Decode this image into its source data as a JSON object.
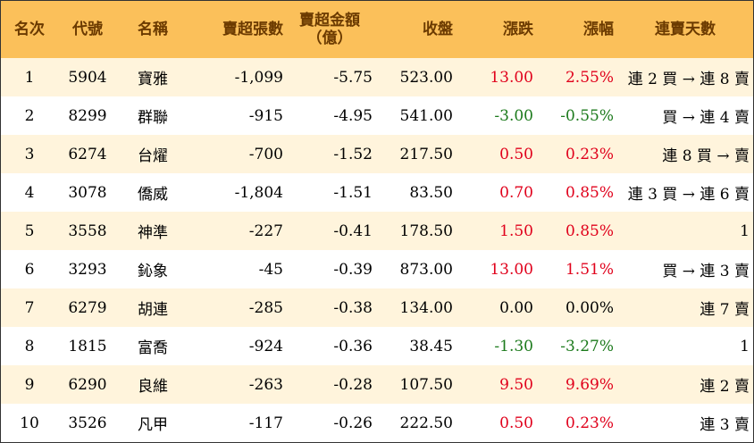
{
  "headers": [
    "名次",
    "代號",
    "名稱",
    "賣超張數",
    "賣超金額",
    "（億）",
    "收盤",
    "漲跌",
    "漲幅",
    "連賣天數"
  ],
  "rows": [
    {
      "rank": "1",
      "code": "5904",
      "name": "寶雅",
      "shares": "-1,099",
      "amount": "-5.75",
      "close": "523.00",
      "change": "13.00",
      "pct": "2.55%",
      "trend": "up",
      "days": "連 2 買 → 連 8 賣"
    },
    {
      "rank": "2",
      "code": "8299",
      "name": "群聯",
      "shares": "-915",
      "amount": "-4.95",
      "close": "541.00",
      "change": "-3.00",
      "pct": "-0.55%",
      "trend": "down",
      "days": "買 → 連 4 賣"
    },
    {
      "rank": "3",
      "code": "6274",
      "name": "台燿",
      "shares": "-700",
      "amount": "-1.52",
      "close": "217.50",
      "change": "0.50",
      "pct": "0.23%",
      "trend": "up",
      "days": "連 8 買 → 賣"
    },
    {
      "rank": "4",
      "code": "3078",
      "name": "僑威",
      "shares": "-1,804",
      "amount": "-1.51",
      "close": "83.50",
      "change": "0.70",
      "pct": "0.85%",
      "trend": "up",
      "days": "連 3 買 → 連 6 賣"
    },
    {
      "rank": "5",
      "code": "3558",
      "name": "神準",
      "shares": "-227",
      "amount": "-0.41",
      "close": "178.50",
      "change": "1.50",
      "pct": "0.85%",
      "trend": "up",
      "days": "1"
    },
    {
      "rank": "6",
      "code": "3293",
      "name": "鈊象",
      "shares": "-45",
      "amount": "-0.39",
      "close": "873.00",
      "change": "13.00",
      "pct": "1.51%",
      "trend": "up",
      "days": "買 → 連 3 賣"
    },
    {
      "rank": "7",
      "code": "6279",
      "name": "胡連",
      "shares": "-285",
      "amount": "-0.38",
      "close": "134.00",
      "change": "0.00",
      "pct": "0.00%",
      "trend": "flat",
      "days": "連 7 賣"
    },
    {
      "rank": "8",
      "code": "1815",
      "name": "富喬",
      "shares": "-924",
      "amount": "-0.36",
      "close": "38.45",
      "change": "-1.30",
      "pct": "-3.27%",
      "trend": "down",
      "days": "1"
    },
    {
      "rank": "9",
      "code": "6290",
      "name": "良維",
      "shares": "-263",
      "amount": "-0.28",
      "close": "107.50",
      "change": "9.50",
      "pct": "9.69%",
      "trend": "up",
      "days": "連 2 賣"
    },
    {
      "rank": "10",
      "code": "3526",
      "name": "凡甲",
      "shares": "-117",
      "amount": "-0.26",
      "close": "222.50",
      "change": "0.50",
      "pct": "0.23%",
      "trend": "up",
      "days": "連 3 賣"
    }
  ],
  "colors": {
    "header_bg": "#fbc05a",
    "header_text": "#6b3a00",
    "odd_row_bg": "#fff4dc",
    "up": "#e0001b",
    "down": "#1c7a1c"
  }
}
